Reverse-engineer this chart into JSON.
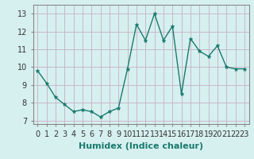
{
  "x": [
    0,
    1,
    2,
    3,
    4,
    5,
    6,
    7,
    8,
    9,
    10,
    11,
    12,
    13,
    14,
    15,
    16,
    17,
    18,
    19,
    20,
    21,
    22,
    23
  ],
  "y": [
    9.8,
    9.1,
    8.3,
    7.9,
    7.5,
    7.6,
    7.5,
    7.2,
    7.5,
    7.7,
    9.9,
    12.4,
    11.5,
    13.0,
    11.5,
    12.3,
    8.5,
    11.6,
    10.9,
    10.6,
    11.2,
    10.0,
    9.9,
    9.9
  ],
  "line_color": "#1a7a6e",
  "marker": "*",
  "marker_size": 3.5,
  "bg_color": "#d6f0ef",
  "grid_color": "#c8b8c8",
  "xlabel": "Humidex (Indice chaleur)",
  "xlim": [
    -0.5,
    23.5
  ],
  "ylim": [
    6.8,
    13.5
  ],
  "yticks": [
    7,
    8,
    9,
    10,
    11,
    12,
    13
  ],
  "xticks": [
    0,
    1,
    2,
    3,
    4,
    5,
    6,
    7,
    8,
    9,
    10,
    11,
    12,
    13,
    14,
    15,
    16,
    17,
    18,
    19,
    20,
    21,
    22,
    23
  ],
  "tick_font_size": 7,
  "label_font_size": 8
}
